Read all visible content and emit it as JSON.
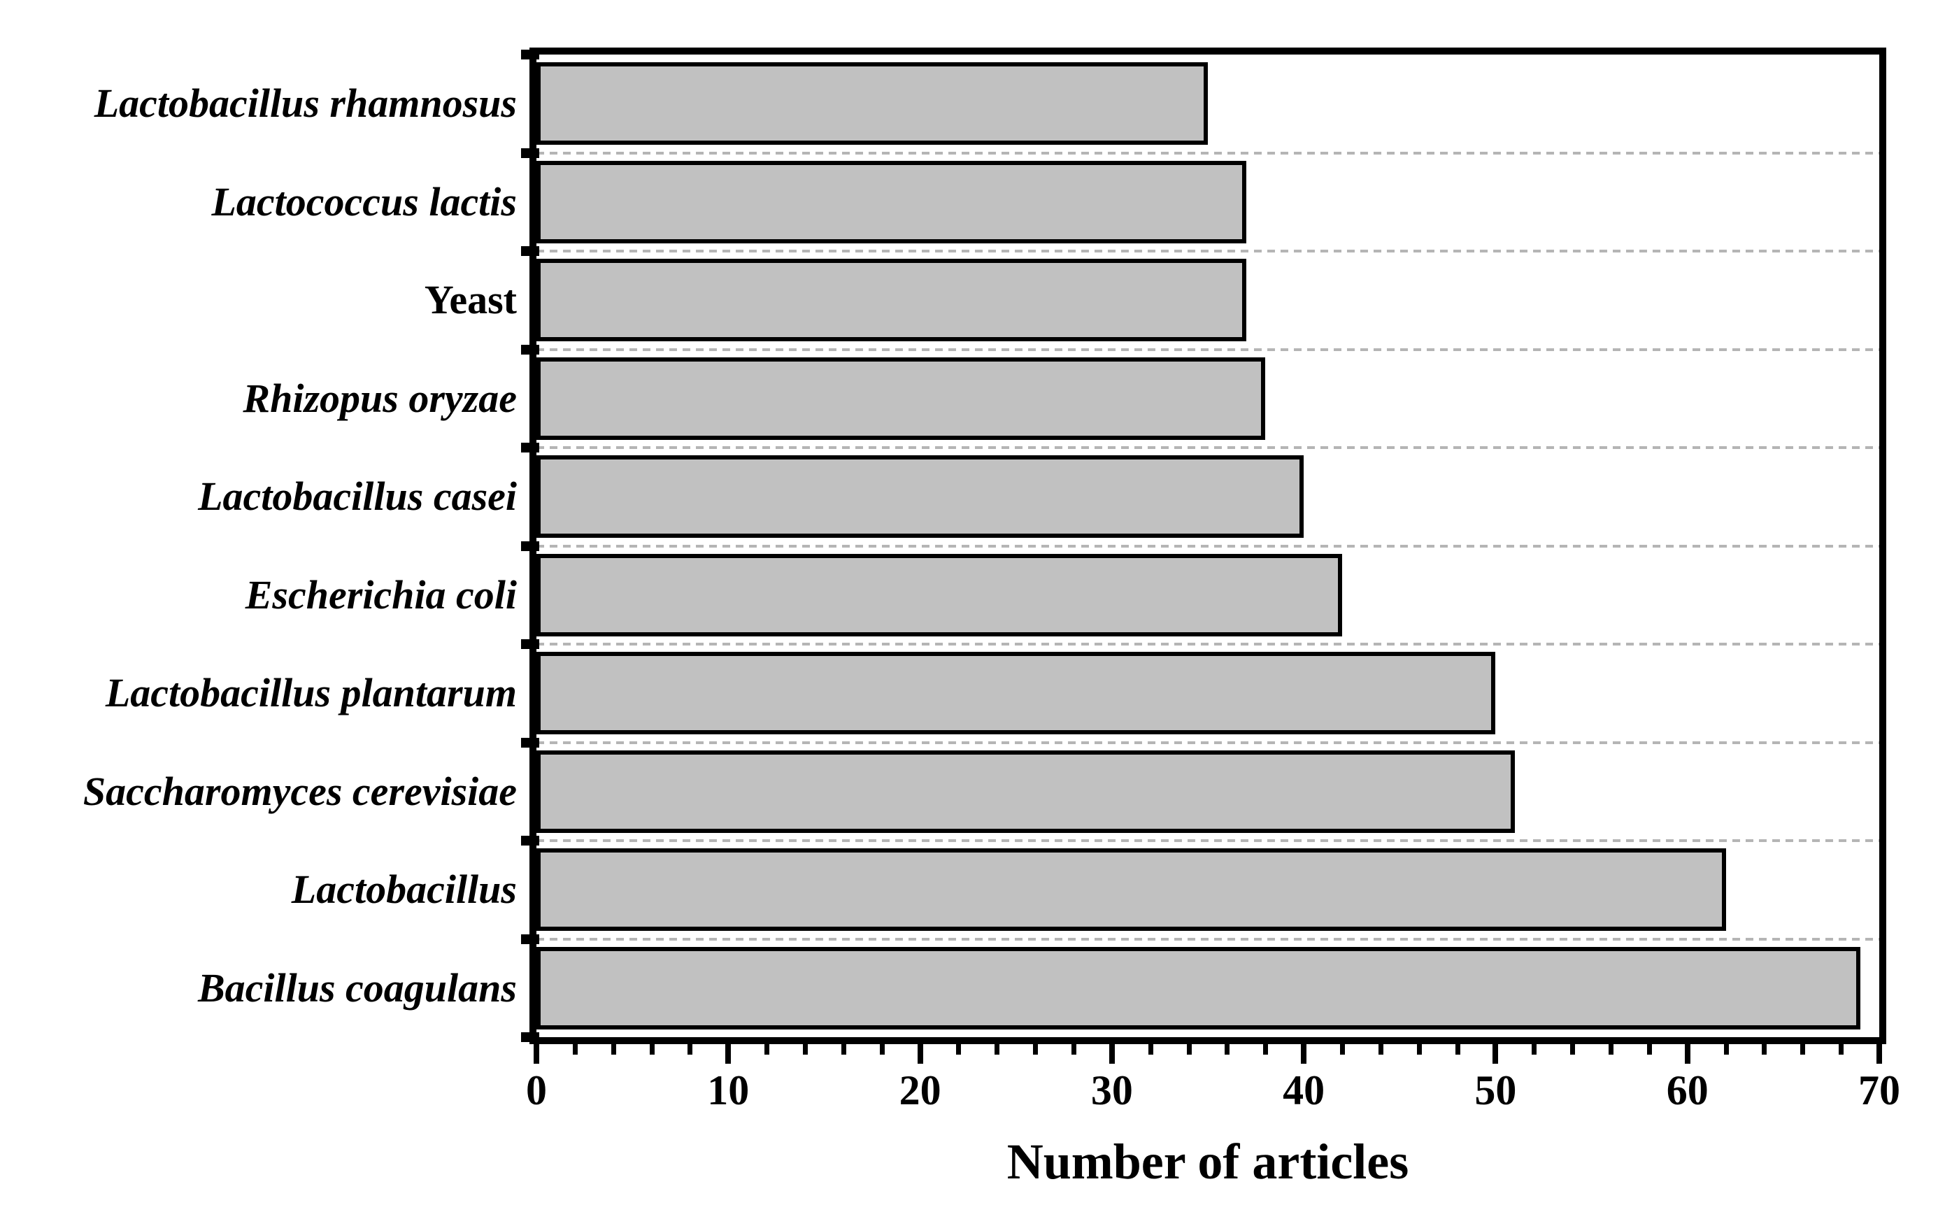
{
  "chart_data": {
    "type": "bar",
    "orientation": "horizontal",
    "title": "",
    "xlabel": "Number of articles",
    "ylabel": "",
    "categories": [
      "Lactobacillus rhamnosus",
      "Lactococcus lactis",
      "Yeast",
      "Rhizopus oryzae",
      "Lactobacillus casei",
      "Escherichia coli",
      "Lactobacillus plantarum",
      "Saccharomyces cerevisiae",
      "Lactobacillus",
      "Bacillus coagulans"
    ],
    "values": [
      35,
      37,
      37,
      38,
      40,
      42,
      50,
      51,
      62,
      69
    ],
    "category_italic": [
      true,
      true,
      false,
      true,
      true,
      true,
      true,
      true,
      true,
      true
    ],
    "xlim": [
      0,
      70
    ],
    "x_major_ticks": [
      "0",
      "10",
      "20",
      "30",
      "40",
      "50",
      "60",
      "70"
    ],
    "x_major_tick_values": [
      0,
      10,
      20,
      30,
      40,
      50,
      60,
      70
    ],
    "x_minor_tick_step": 2,
    "grid": "horizontal-dashed",
    "legend": "none",
    "colors": {
      "bar_fill": "#c1c1c1",
      "bar_border": "#000000",
      "grid_line": "#b5b5b5",
      "axis": "#000000",
      "background": "#ffffff",
      "text": "#000000"
    }
  }
}
